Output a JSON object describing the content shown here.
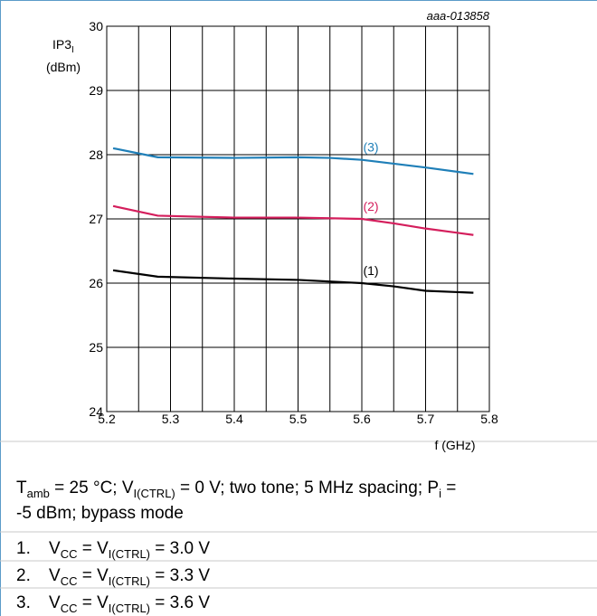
{
  "chart_data": {
    "type": "line",
    "figure_id": "aaa-013858",
    "ylabel": [
      "IP3",
      "I"
    ],
    "ylabel_unit": "(dBm)",
    "xlabel": "f (GHz)",
    "xlim": [
      5.2,
      5.8
    ],
    "xticks": [
      5.2,
      5.3,
      5.4,
      5.5,
      5.6,
      5.7,
      5.8
    ],
    "xminor_ticks": [
      5.25,
      5.35,
      5.45,
      5.55,
      5.65,
      5.75
    ],
    "ylim": [
      24,
      30
    ],
    "yticks": [
      24,
      25,
      26,
      27,
      28,
      29,
      30
    ],
    "grid": true,
    "series": [
      {
        "name": "(1)",
        "color": "#000000",
        "x": [
          5.21,
          5.28,
          5.4,
          5.5,
          5.6,
          5.65,
          5.7,
          5.775
        ],
        "y": [
          26.2,
          26.1,
          26.07,
          26.05,
          26.0,
          25.95,
          25.88,
          25.85
        ]
      },
      {
        "name": "(2)",
        "color": "#d41e5c",
        "x": [
          5.21,
          5.28,
          5.4,
          5.5,
          5.6,
          5.65,
          5.7,
          5.775
        ],
        "y": [
          27.2,
          27.05,
          27.02,
          27.02,
          27.0,
          26.93,
          26.85,
          26.75
        ]
      },
      {
        "name": "(3)",
        "color": "#1f7fb8",
        "x": [
          5.21,
          5.28,
          5.4,
          5.5,
          5.55,
          5.6,
          5.7,
          5.775
        ],
        "y": [
          28.1,
          27.96,
          27.95,
          27.96,
          27.95,
          27.92,
          27.8,
          27.7
        ]
      }
    ],
    "conditions": [
      [
        "T",
        "amb",
        " = 25 °C; V",
        "I(CTRL)",
        " = 0 V; two tone; 5 MHz spacing; P",
        "i",
        " ="
      ],
      [
        "-5 dBm; bypass mode"
      ]
    ],
    "items": [
      {
        "number": "1.",
        "runs": [
          "V",
          "CC",
          " = V",
          "I(CTRL)",
          " = 3.0 V"
        ]
      },
      {
        "number": "2.",
        "runs": [
          "V",
          "CC",
          " = V",
          "I(CTRL)",
          " = 3.3 V"
        ]
      },
      {
        "number": "3.",
        "runs": [
          "V",
          "CC",
          " = V",
          "I(CTRL)",
          " = 3.6 V"
        ]
      }
    ]
  }
}
